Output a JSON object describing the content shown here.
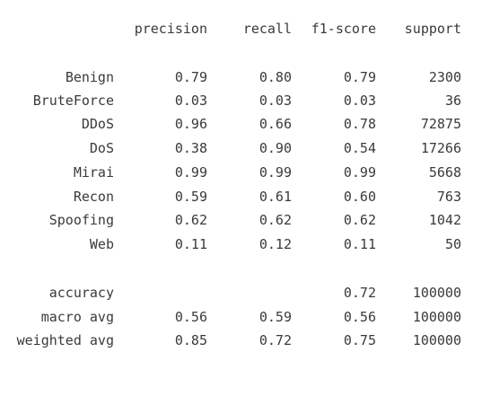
{
  "header": {
    "precision": "precision",
    "recall": "recall",
    "f1_score": "f1-score",
    "support": "support"
  },
  "classes": [
    {
      "label": "Benign",
      "precision": "0.79",
      "recall": "0.80",
      "f1_score": "0.79",
      "support": "2300"
    },
    {
      "label": "BruteForce",
      "precision": "0.03",
      "recall": "0.03",
      "f1_score": "0.03",
      "support": "36"
    },
    {
      "label": "DDoS",
      "precision": "0.96",
      "recall": "0.66",
      "f1_score": "0.78",
      "support": "72875"
    },
    {
      "label": "DoS",
      "precision": "0.38",
      "recall": "0.90",
      "f1_score": "0.54",
      "support": "17266"
    },
    {
      "label": "Mirai",
      "precision": "0.99",
      "recall": "0.99",
      "f1_score": "0.99",
      "support": "5668"
    },
    {
      "label": "Recon",
      "precision": "0.59",
      "recall": "0.61",
      "f1_score": "0.60",
      "support": "763"
    },
    {
      "label": "Spoofing",
      "precision": "0.62",
      "recall": "0.62",
      "f1_score": "0.62",
      "support": "1042"
    },
    {
      "label": "Web",
      "precision": "0.11",
      "recall": "0.12",
      "f1_score": "0.11",
      "support": "50"
    }
  ],
  "summary": [
    {
      "label": "accuracy",
      "precision": "",
      "recall": "",
      "f1_score": "0.72",
      "support": "100000"
    },
    {
      "label": "macro avg",
      "precision": "0.56",
      "recall": "0.59",
      "f1_score": "0.56",
      "support": "100000"
    },
    {
      "label": "weighted avg",
      "precision": "0.85",
      "recall": "0.72",
      "f1_score": "0.75",
      "support": "100000"
    }
  ]
}
